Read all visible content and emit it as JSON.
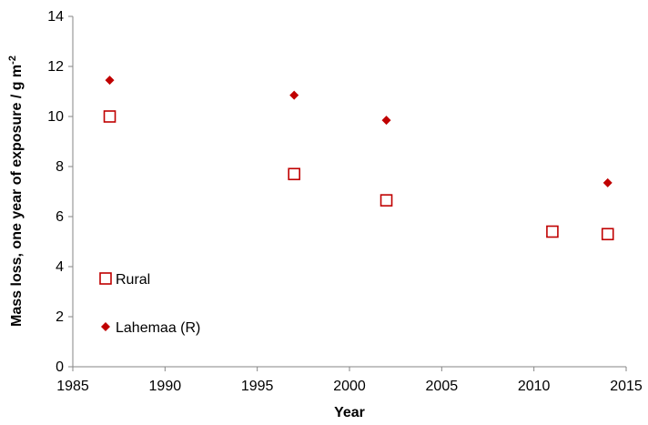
{
  "chart_data": {
    "type": "scatter",
    "title": "",
    "xlabel": "Year",
    "ylabel_main": "Mass loss, one year of exposure / g m",
    "ylabel_sup": "-2",
    "xlim": [
      1985,
      2015
    ],
    "ylim": [
      0,
      14
    ],
    "xticks": [
      1985,
      1990,
      1995,
      2000,
      2005,
      2010,
      2015
    ],
    "yticks": [
      0,
      2,
      4,
      6,
      8,
      10,
      12,
      14
    ],
    "grid": false,
    "legend_position": "lower-left",
    "series": [
      {
        "name": "Rural",
        "marker": "square-open",
        "color": "#c00000",
        "points": [
          {
            "x": 1987,
            "y": 10.0
          },
          {
            "x": 1997,
            "y": 7.7
          },
          {
            "x": 2002,
            "y": 6.65
          },
          {
            "x": 2011,
            "y": 5.4
          },
          {
            "x": 2014,
            "y": 5.3
          }
        ]
      },
      {
        "name": "Lahemaa (R)",
        "marker": "diamond-filled",
        "color": "#c00000",
        "points": [
          {
            "x": 1987,
            "y": 11.45
          },
          {
            "x": 1997,
            "y": 10.85
          },
          {
            "x": 2002,
            "y": 9.85
          },
          {
            "x": 2014,
            "y": 7.35
          }
        ]
      }
    ]
  }
}
